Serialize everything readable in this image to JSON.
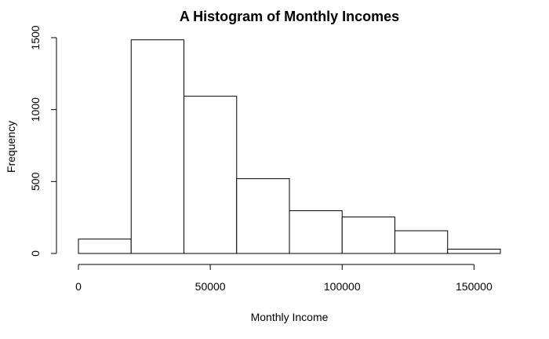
{
  "chart_data": {
    "type": "bar",
    "title": "A Histogram of Monthly Incomes",
    "xlabel": "Monthly Income",
    "ylabel": "Frequency",
    "bins": [
      {
        "start": 0,
        "end": 20000,
        "count": 100
      },
      {
        "start": 20000,
        "end": 40000,
        "count": 1485
      },
      {
        "start": 40000,
        "end": 60000,
        "count": 1093
      },
      {
        "start": 60000,
        "end": 80000,
        "count": 520
      },
      {
        "start": 80000,
        "end": 100000,
        "count": 297
      },
      {
        "start": 100000,
        "end": 120000,
        "count": 254
      },
      {
        "start": 120000,
        "end": 140000,
        "count": 158
      },
      {
        "start": 140000,
        "end": 160000,
        "count": 30
      }
    ],
    "x_ticks": [
      {
        "value": 0,
        "label": "0"
      },
      {
        "value": 50000,
        "label": "50000"
      },
      {
        "value": 100000,
        "label": "100000"
      },
      {
        "value": 150000,
        "label": "150000"
      }
    ],
    "y_ticks": [
      {
        "value": 0,
        "label": "0"
      },
      {
        "value": 500,
        "label": "500"
      },
      {
        "value": 1000,
        "label": "1000"
      },
      {
        "value": 1500,
        "label": "1500"
      }
    ],
    "xlim": [
      0,
      160000
    ],
    "ylim": [
      0,
      1500
    ],
    "grid": false,
    "legend": "none"
  }
}
